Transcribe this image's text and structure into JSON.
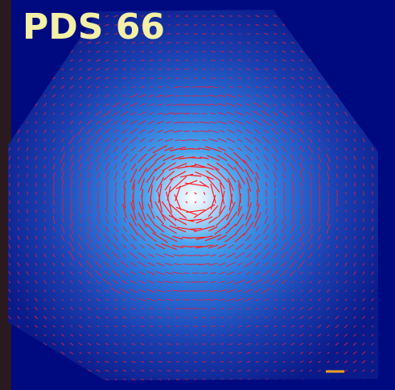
{
  "title": "PDS 66"
}
